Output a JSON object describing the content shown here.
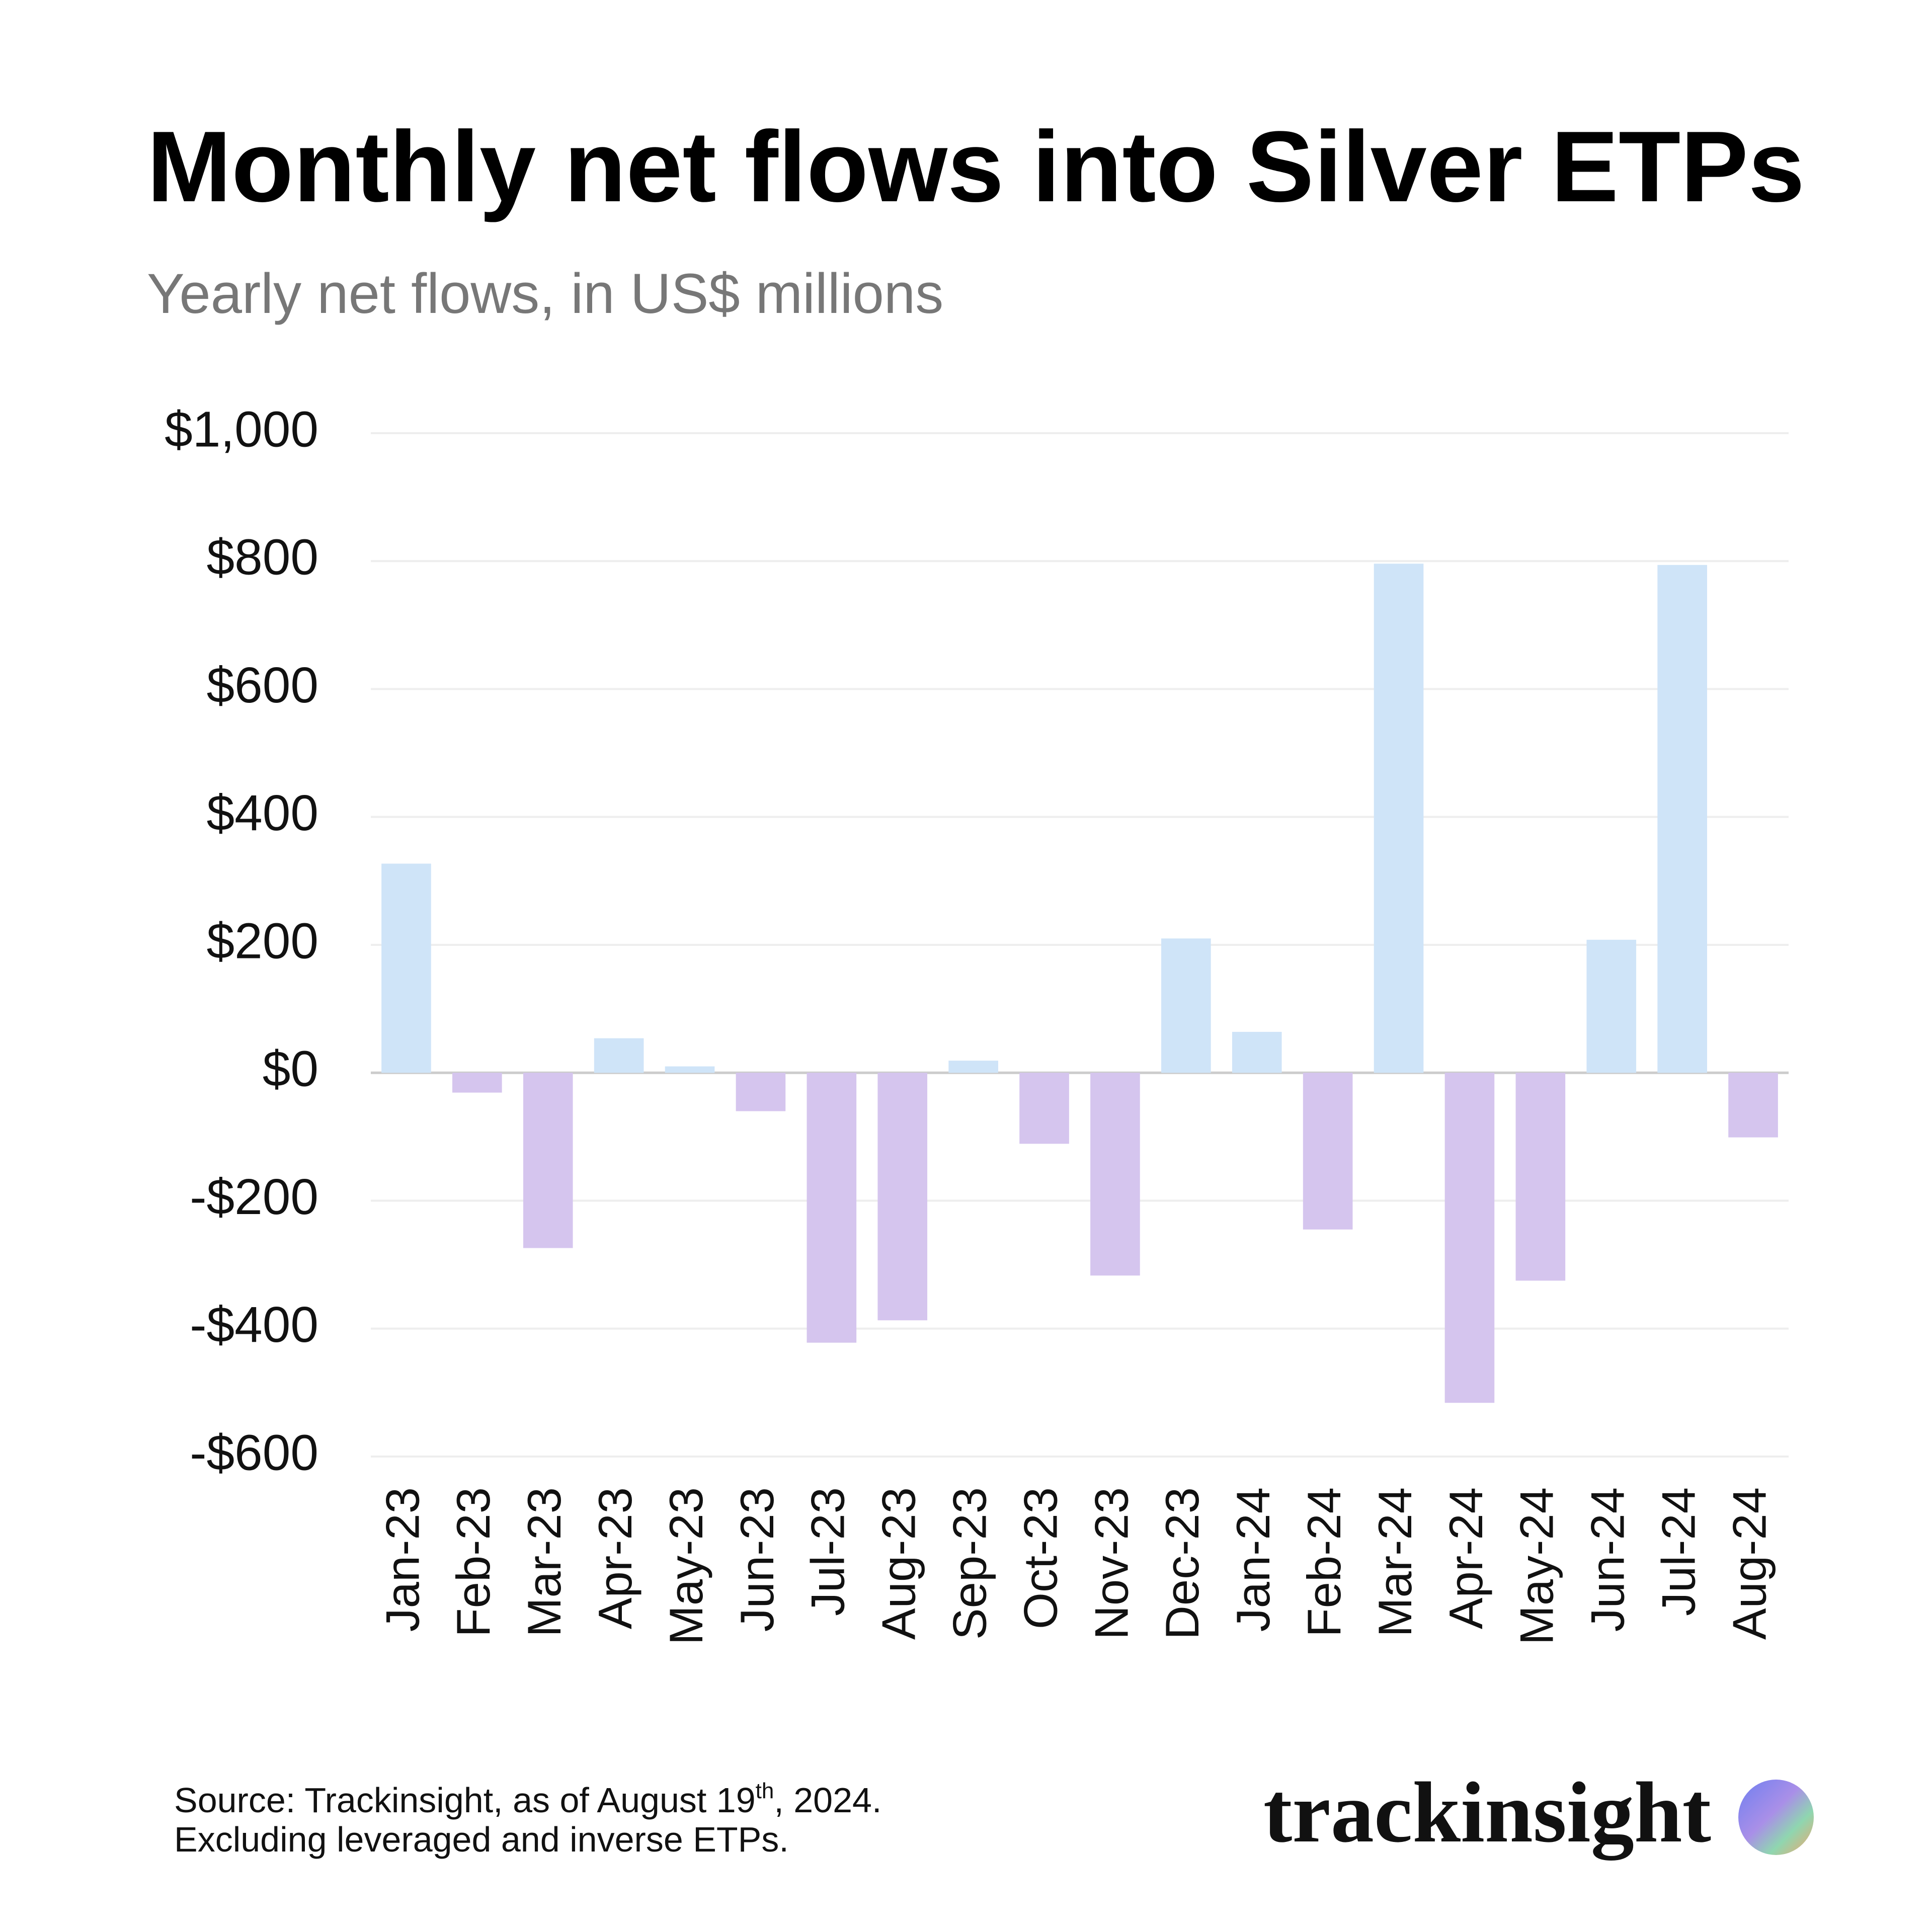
{
  "chart_data": {
    "type": "bar",
    "title": "Monthly net flows into Silver ETPs",
    "subtitle": "Yearly net flows, in US$ millions",
    "categories": [
      "Jan-23",
      "Feb-23",
      "Mar-23",
      "Apr-23",
      "May-23",
      "Jun-23",
      "Jul-23",
      "Aug-23",
      "Sep-23",
      "Oct-23",
      "Nov-23",
      "Dec-23",
      "Jan-24",
      "Feb-24",
      "Mar-24",
      "Apr-24",
      "May-24",
      "Jun-24",
      "Jul-24",
      "Aug-24"
    ],
    "values": [
      327,
      -31,
      -274,
      54,
      10,
      -60,
      -422,
      -387,
      19,
      -111,
      -317,
      210,
      64,
      -245,
      796,
      -516,
      -325,
      208,
      794,
      -101
    ],
    "positive_color": "#cfe4f8",
    "negative_color": "#d5c5ee",
    "ylim": [
      -600,
      1000
    ],
    "yticks": [
      {
        "value": -600,
        "label": "-$600"
      },
      {
        "value": -400,
        "label": "-$400"
      },
      {
        "value": -200,
        "label": "-$200"
      },
      {
        "value": 0,
        "label": "$0"
      },
      {
        "value": 200,
        "label": "$200"
      },
      {
        "value": 400,
        "label": "$400"
      },
      {
        "value": 600,
        "label": "$600"
      },
      {
        "value": 800,
        "label": "$800"
      },
      {
        "value": 1000,
        "label": "$1,000"
      }
    ],
    "grid": true,
    "source": {
      "prefix": "Source: Trackinsight, as of August 19",
      "superscript": "th",
      "suffix": ", 2024."
    },
    "note": "Excluding leveraged and inverse ETPs.",
    "logo": "trackinsight"
  }
}
